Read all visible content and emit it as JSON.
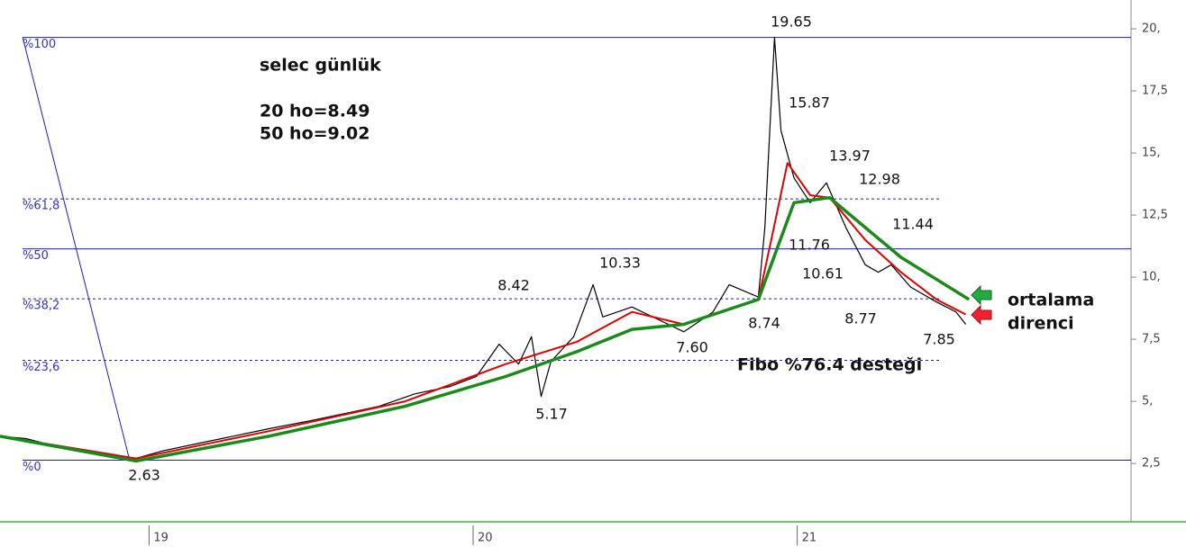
{
  "chart_data": {
    "type": "line",
    "title": "selec günlük",
    "notes": [
      "20 ho=8.49",
      "50 ho=9.02"
    ],
    "xlim": [
      18.54,
      22.03
    ],
    "ylim": [
      0.15,
      21.16
    ],
    "xticks": [
      19,
      20,
      21
    ],
    "yticks": [
      {
        "value": 20,
        "label": "20,"
      },
      {
        "value": 17.5,
        "label": "17,5"
      },
      {
        "value": 15,
        "label": "15,"
      },
      {
        "value": 12.5,
        "label": "12,5"
      },
      {
        "value": 10,
        "label": "10,"
      },
      {
        "value": 7.5,
        "label": "7,5"
      },
      {
        "value": 5,
        "label": "5,"
      },
      {
        "value": 2.5,
        "label": "2,5"
      }
    ],
    "series": [
      {
        "color": "#000000",
        "x": [
          18.54,
          18.62,
          18.71,
          18.82,
          18.94,
          19.04,
          19.15,
          19.26,
          19.37,
          19.49,
          19.6,
          19.71,
          19.82,
          19.93,
          20.01,
          20.08,
          20.14,
          20.18,
          20.21,
          20.24,
          20.31,
          20.37,
          20.4,
          20.49,
          20.57,
          20.65,
          20.74,
          20.79,
          20.88,
          20.9,
          20.93,
          20.95,
          20.99,
          21.04,
          21.09,
          21.15,
          21.21,
          21.25,
          21.29,
          21.35,
          21.43,
          21.49,
          21.52
        ],
        "values": [
          3.6,
          3.5,
          3.2,
          3.0,
          2.63,
          3.0,
          3.3,
          3.6,
          3.9,
          4.2,
          4.5,
          4.8,
          5.3,
          5.6,
          6.0,
          7.3,
          6.5,
          7.6,
          5.2,
          6.6,
          7.6,
          9.7,
          8.4,
          8.8,
          8.3,
          7.8,
          8.6,
          9.7,
          9.2,
          12,
          19.65,
          15.9,
          14,
          13,
          13.8,
          12,
          10.5,
          10.2,
          10.5,
          9.6,
          9.0,
          8.6,
          8.1
        ]
      },
      {
        "color": "#e00000",
        "x": [
          18.54,
          18.96,
          19.37,
          19.79,
          20.1,
          20.32,
          20.49,
          20.65,
          20.88,
          20.92,
          20.97,
          21.04,
          21.1,
          21.21,
          21.32,
          21.43,
          21.52
        ],
        "values": [
          3.6,
          2.7,
          3.8,
          5.0,
          6.5,
          7.4,
          8.6,
          8.1,
          9.1,
          11.5,
          14.6,
          13.3,
          13.2,
          11.5,
          10.2,
          9.1,
          8.5
        ]
      },
      {
        "color": "#1a8a1a",
        "x": [
          18.54,
          18.96,
          19.37,
          19.79,
          20.1,
          20.32,
          20.49,
          20.65,
          20.88,
          20.99,
          21.1,
          21.21,
          21.32,
          21.53
        ],
        "values": [
          3.6,
          2.6,
          3.6,
          4.8,
          6.0,
          7.0,
          7.9,
          8.1,
          9.1,
          13.0,
          13.2,
          12.0,
          10.8,
          9.1
        ]
      }
    ],
    "fib_levels": [
      {
        "label": "%100",
        "value": 19.65,
        "style": "solid"
      },
      {
        "label": "%61,8",
        "value": 13.15,
        "style": "dashed"
      },
      {
        "label": "%50",
        "value": 11.14,
        "style": "solid"
      },
      {
        "label": "%38,2",
        "value": 9.13,
        "style": "dashed"
      },
      {
        "label": "%23,6",
        "value": 6.65,
        "style": "dashed"
      },
      {
        "label": "%0",
        "value": 2.63,
        "style": "solid"
      }
    ],
    "fib_color": "#1a1acc",
    "trend_line": {
      "x": [
        18.61,
        18.94
      ],
      "values": [
        19.65,
        2.63
      ]
    },
    "price_labels": [
      "19.65",
      "15.87",
      "13.97",
      "12.98",
      "11.44",
      "11.76",
      "10.61",
      "8.74",
      "8.77",
      "7.85",
      "7.60",
      "10.33",
      "8.42",
      "5.17",
      "2.63"
    ],
    "resistance_label": [
      "ortalama",
      "direnci"
    ],
    "support_label": "Fibo %76.4 desteği"
  }
}
